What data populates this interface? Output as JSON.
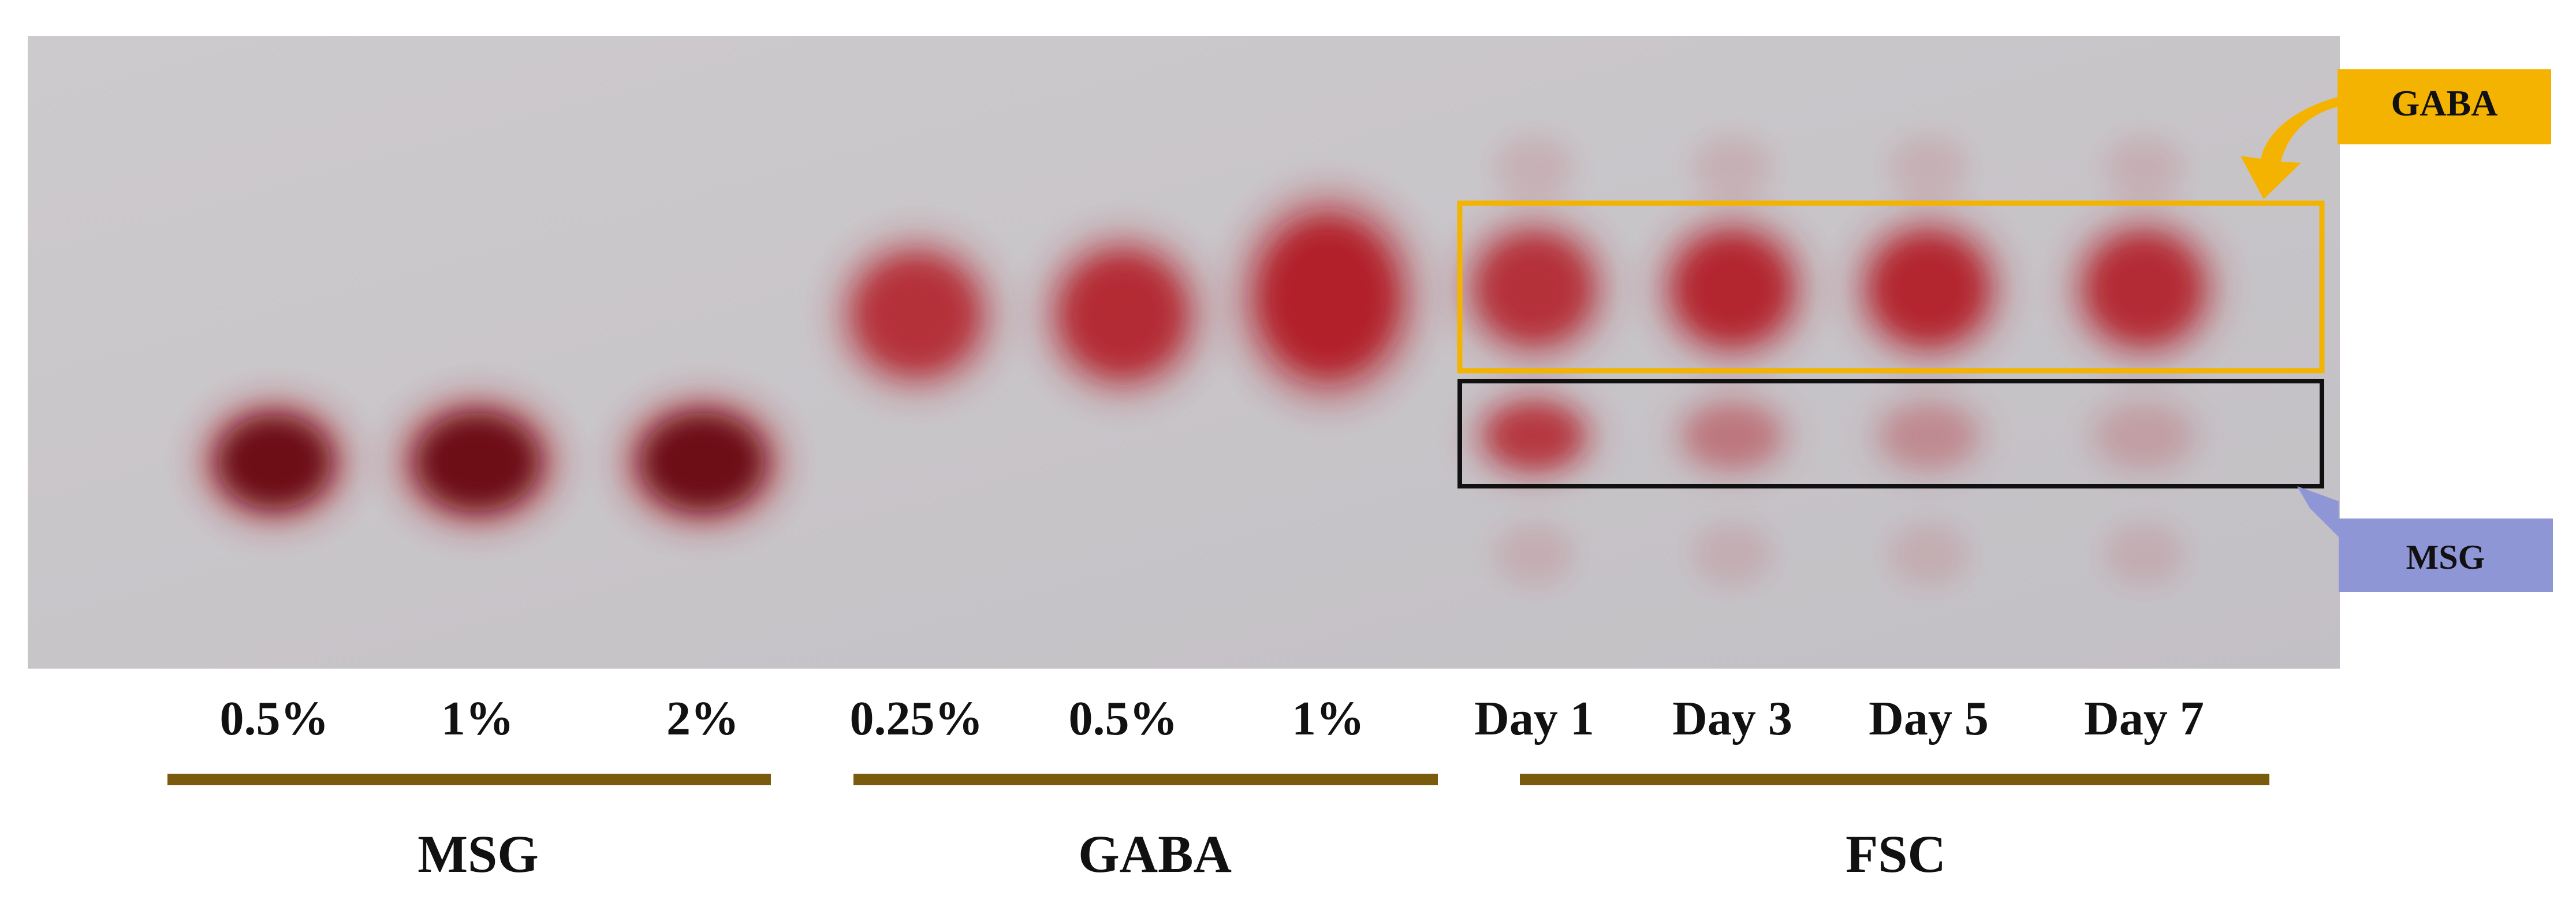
{
  "plate": {
    "background_color": "#c9c6c9",
    "spot_color_dark": "#6d0a12",
    "spot_color": "#b21e28",
    "lanes": [
      {
        "group": "MSG",
        "label": "0.5%",
        "spots": [
          {
            "component": "MSG",
            "intensity": 1.0
          }
        ]
      },
      {
        "group": "MSG",
        "label": "1%",
        "spots": [
          {
            "component": "MSG",
            "intensity": 1.0
          }
        ]
      },
      {
        "group": "MSG",
        "label": "2%",
        "spots": [
          {
            "component": "MSG",
            "intensity": 1.0
          }
        ]
      },
      {
        "group": "GABA",
        "label": "0.25%",
        "spots": [
          {
            "component": "GABA",
            "intensity": 0.8
          }
        ]
      },
      {
        "group": "GABA",
        "label": "0.5%",
        "spots": [
          {
            "component": "GABA",
            "intensity": 0.85
          }
        ]
      },
      {
        "group": "GABA",
        "label": "1%",
        "spots": [
          {
            "component": "GABA",
            "intensity": 0.95
          }
        ]
      },
      {
        "group": "FSC",
        "label": "Day 1",
        "spots": [
          {
            "component": "GABA",
            "intensity": 0.8
          },
          {
            "component": "MSG",
            "intensity": 0.75
          }
        ]
      },
      {
        "group": "FSC",
        "label": "Day 3",
        "spots": [
          {
            "component": "GABA",
            "intensity": 0.9
          },
          {
            "component": "MSG",
            "intensity": 0.35
          }
        ]
      },
      {
        "group": "FSC",
        "label": "Day 5",
        "spots": [
          {
            "component": "GABA",
            "intensity": 0.9
          },
          {
            "component": "MSG",
            "intensity": 0.25
          }
        ]
      },
      {
        "group": "FSC",
        "label": "Day 7",
        "spots": [
          {
            "component": "GABA",
            "intensity": 0.85
          },
          {
            "component": "MSG",
            "intensity": 0.15
          }
        ]
      }
    ]
  },
  "lane_labels": [
    "0.5%",
    "1%",
    "2%",
    "0.25%",
    "0.5%",
    "1%",
    "Day 1",
    "Day 3",
    "Day 5",
    "Day 7"
  ],
  "groups": [
    {
      "name": "MSG"
    },
    {
      "name": "GABA"
    },
    {
      "name": "FSC"
    }
  ],
  "group_bar_color": "#7a5a0c",
  "highlight_boxes": {
    "gaba": {
      "color": "#f2b400"
    },
    "msg": {
      "color": "#111111"
    }
  },
  "callouts": {
    "gaba": {
      "label": "GABA",
      "color": "#f5b301"
    },
    "msg": {
      "label": "MSG",
      "color": "#8f96d6"
    }
  }
}
